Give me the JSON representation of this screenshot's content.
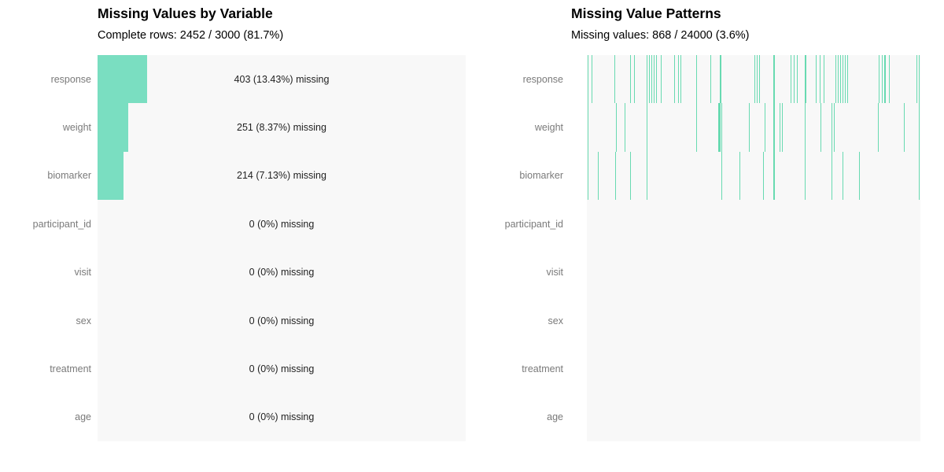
{
  "colors": {
    "bar": "#7adec1",
    "tick": "#68dab1",
    "plot_background": "#f8f8f8",
    "axis_label": "#7a7a7a",
    "annotation_text": "#1f1f1f"
  },
  "chart_data": [
    {
      "type": "bar",
      "orientation": "horizontal",
      "title": "Missing Values by Variable",
      "subtitle": "Complete rows: 2452 / 3000 (81.7%)",
      "categories": [
        "response",
        "weight",
        "biomarker",
        "participant_id",
        "visit",
        "sex",
        "treatment",
        "age"
      ],
      "values": [
        403,
        251,
        214,
        0,
        0,
        0,
        0,
        0
      ],
      "percents": [
        13.43,
        8.37,
        7.13,
        0,
        0,
        0,
        0,
        0
      ],
      "bar_labels": [
        "403 (13.43%) missing",
        "251 (8.37%) missing",
        "214 (7.13%) missing",
        "0 (0%) missing",
        "0 (0%) missing",
        "0 (0%) missing",
        "0 (0%) missing",
        "0 (0%) missing"
      ],
      "xlim": [
        0,
        100
      ],
      "grid": false,
      "legend": "none"
    },
    {
      "type": "heatmap",
      "title": "Missing Value Patterns",
      "subtitle": "Missing values: 868 / 24000 (3.6%)",
      "categories": [
        "response",
        "weight",
        "biomarker",
        "participant_id",
        "visit",
        "sex",
        "treatment",
        "age"
      ],
      "x_range_fraction": [
        0,
        1
      ],
      "grid": false,
      "legend": "none",
      "series": [
        {
          "name": "response",
          "ticks": [
            [
              0.002,
              1
            ],
            [
              0.014,
              1
            ],
            [
              0.083,
              1
            ],
            [
              0.13,
              1
            ],
            [
              0.142,
              1
            ],
            [
              0.179,
              1
            ],
            [
              0.186,
              1
            ],
            [
              0.193,
              1
            ],
            [
              0.2,
              1
            ],
            [
              0.208,
              1
            ],
            [
              0.222,
              1
            ],
            [
              0.262,
              1
            ],
            [
              0.274,
              1
            ],
            [
              0.281,
              1
            ],
            [
              0.328,
              1
            ],
            [
              0.37,
              1
            ],
            [
              0.399,
              2
            ],
            [
              0.502,
              1
            ],
            [
              0.509,
              1
            ],
            [
              0.517,
              1
            ],
            [
              0.559,
              2
            ],
            [
              0.611,
              1
            ],
            [
              0.62,
              1
            ],
            [
              0.63,
              1
            ],
            [
              0.653,
              2
            ],
            [
              0.686,
              1
            ],
            [
              0.698,
              1
            ],
            [
              0.71,
              1
            ],
            [
              0.745,
              1
            ],
            [
              0.752,
              1
            ],
            [
              0.759,
              1
            ],
            [
              0.767,
              1
            ],
            [
              0.774,
              1
            ],
            [
              0.781,
              1
            ],
            [
              0.875,
              1
            ],
            [
              0.884,
              1
            ],
            [
              0.891,
              2
            ],
            [
              0.906,
              1
            ],
            [
              0.988,
              1
            ],
            [
              0.995,
              1
            ]
          ]
        },
        {
          "name": "weight",
          "ticks": [
            [
              0.002,
              1
            ],
            [
              0.087,
              1
            ],
            [
              0.113,
              1
            ],
            [
              0.179,
              1
            ],
            [
              0.328,
              1
            ],
            [
              0.394,
              3
            ],
            [
              0.403,
              1
            ],
            [
              0.486,
              1
            ],
            [
              0.533,
              1
            ],
            [
              0.559,
              2
            ],
            [
              0.578,
              1
            ],
            [
              0.585,
              1
            ],
            [
              0.653,
              1
            ],
            [
              0.7,
              1
            ],
            [
              0.733,
              1
            ],
            [
              0.741,
              1
            ],
            [
              0.873,
              1
            ],
            [
              0.95,
              1
            ],
            [
              0.995,
              1
            ]
          ]
        },
        {
          "name": "biomarker",
          "ticks": [
            [
              0.002,
              1
            ],
            [
              0.033,
              1
            ],
            [
              0.085,
              1
            ],
            [
              0.13,
              1
            ],
            [
              0.179,
              1
            ],
            [
              0.403,
              1
            ],
            [
              0.458,
              1
            ],
            [
              0.528,
              1
            ],
            [
              0.559,
              2
            ],
            [
              0.653,
              1
            ],
            [
              0.733,
              1
            ],
            [
              0.767,
              1
            ],
            [
              0.816,
              1
            ],
            [
              0.995,
              1
            ]
          ]
        },
        {
          "name": "participant_id",
          "ticks": []
        },
        {
          "name": "visit",
          "ticks": []
        },
        {
          "name": "sex",
          "ticks": []
        },
        {
          "name": "treatment",
          "ticks": []
        },
        {
          "name": "age",
          "ticks": []
        }
      ]
    }
  ]
}
